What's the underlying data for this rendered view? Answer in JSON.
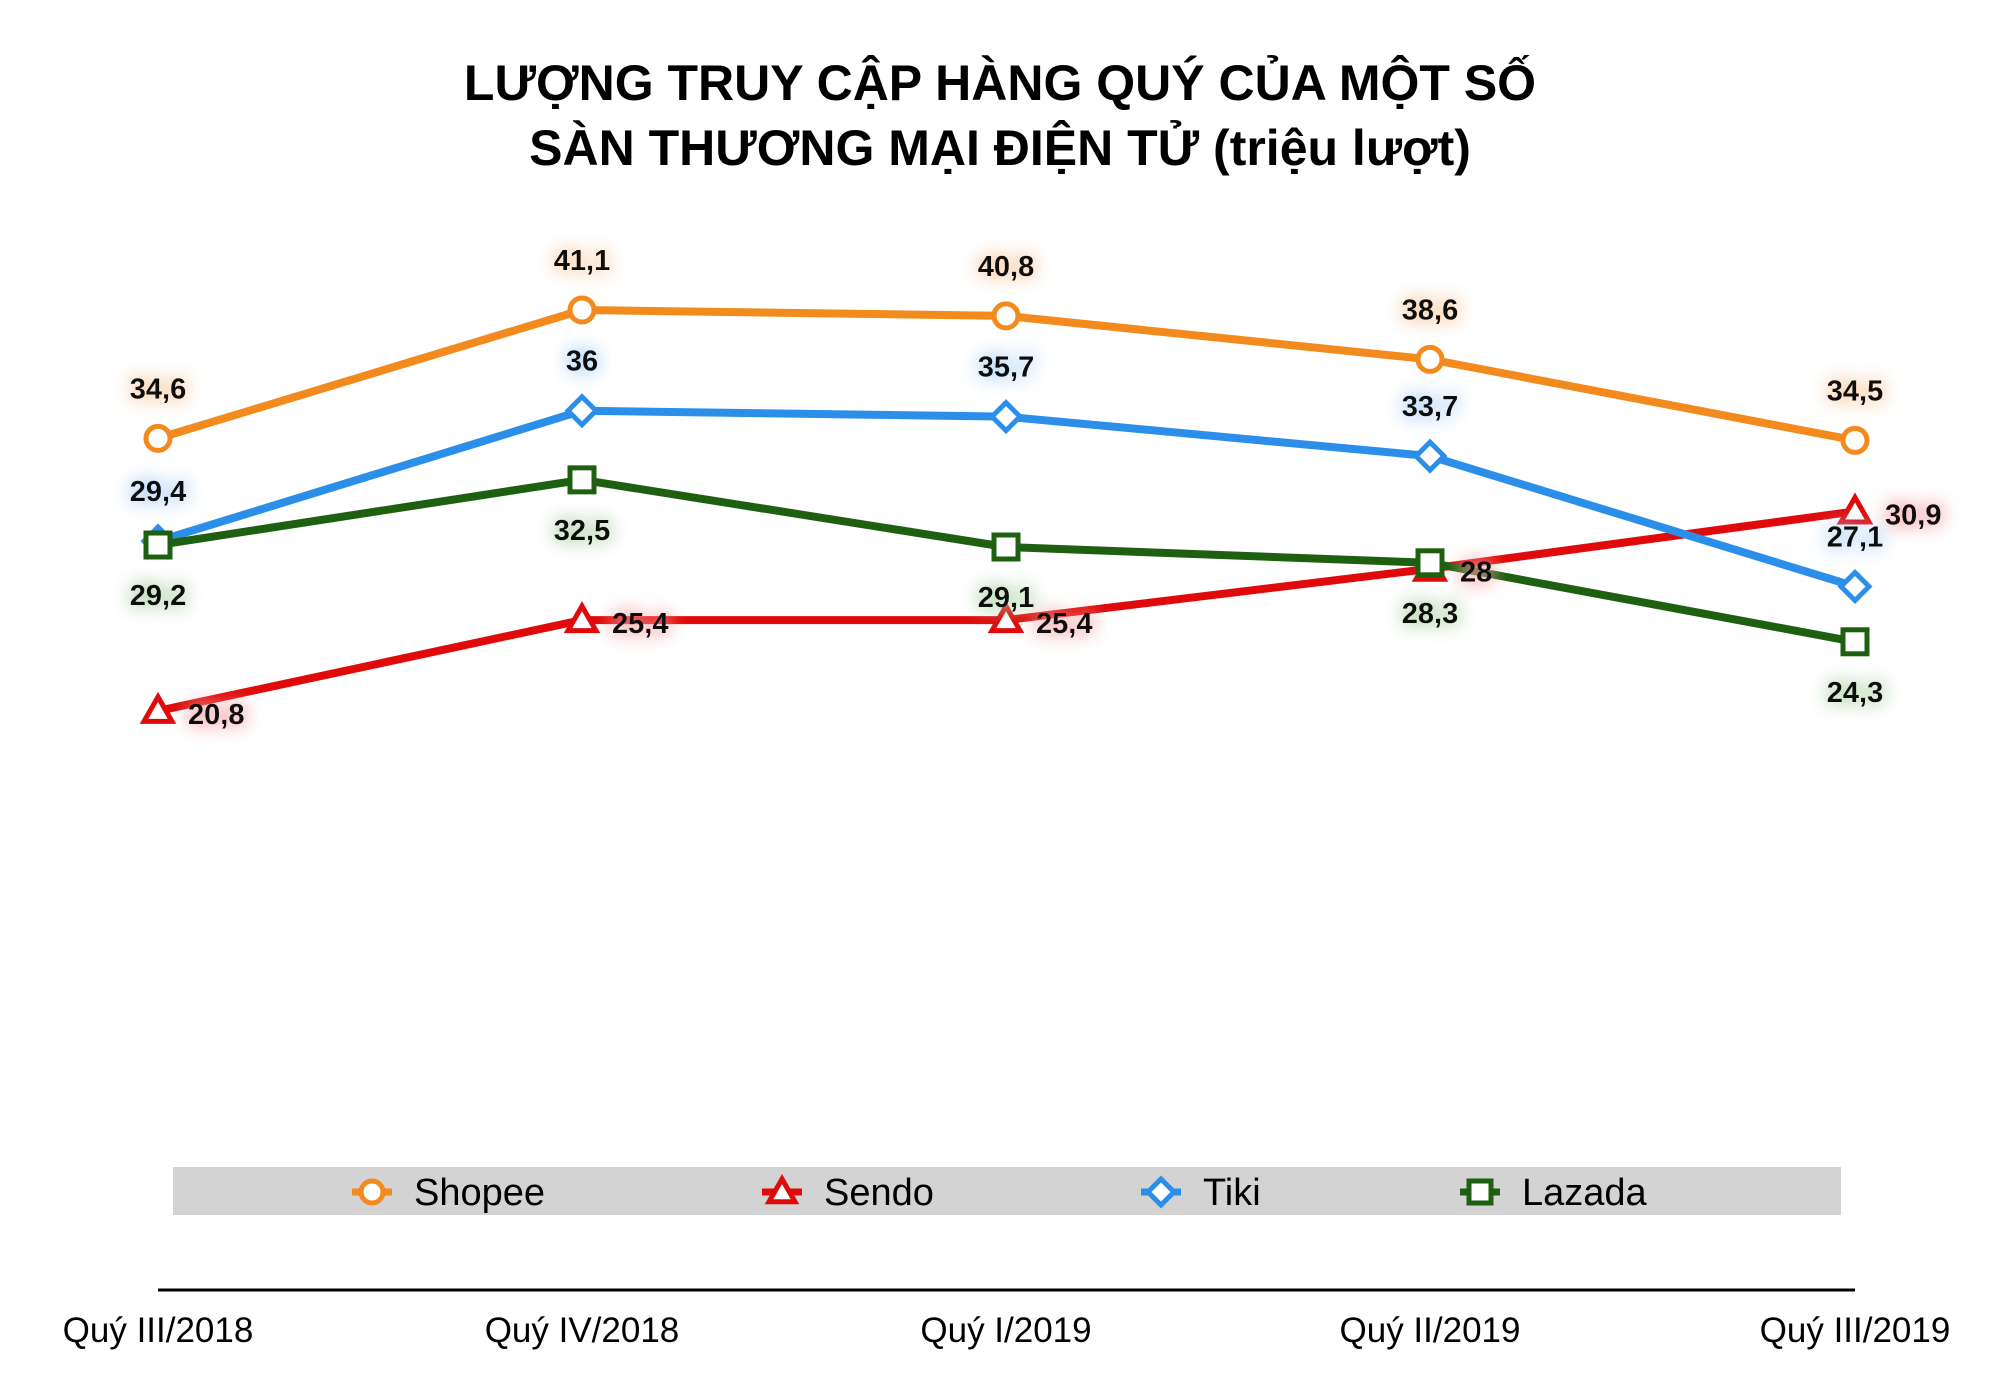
{
  "chart_data": {
    "type": "line",
    "title_lines": [
      "LƯỢNG TRUY CẬP HÀNG QUÝ CỦA MỘT SỐ",
      "SÀN THƯƠNG MẠI ĐIỆN TỬ (triệu lượt)"
    ],
    "xlabel": "",
    "ylabel": "",
    "categories": [
      "Quý III/2018",
      "Quý IV/2018",
      "Quý I/2019",
      "Quý II/2019",
      "Quý III/2019"
    ],
    "ylim": [
      0,
      45
    ],
    "grid": false,
    "legend_position": "bottom",
    "series": [
      {
        "name": "Shopee",
        "color": "#F28A1D",
        "marker": "circle",
        "values": [
          34.6,
          41.1,
          40.8,
          38.6,
          34.5
        ],
        "labels": [
          "34,6",
          "41,1",
          "40,8",
          "38,6",
          "34,5"
        ],
        "label_positions": [
          "above",
          "above",
          "above",
          "above",
          "above"
        ],
        "glow": "#F5C79A"
      },
      {
        "name": "Sendo",
        "color": "#E00A0A",
        "marker": "triangle",
        "values": [
          20.8,
          25.4,
          25.4,
          28,
          30.9
        ],
        "labels": [
          "20,8",
          "25,4",
          "25,4",
          "28",
          "30,9"
        ],
        "label_positions": [
          "right",
          "right",
          "right",
          "right",
          "right"
        ],
        "glow": "#F2A0A0"
      },
      {
        "name": "Tiki",
        "color": "#2B8FEA",
        "marker": "diamond",
        "values": [
          29.4,
          36,
          35.7,
          33.7,
          27.1
        ],
        "labels": [
          "29,4",
          "36",
          "35,7",
          "33,7",
          "27,1"
        ],
        "label_positions": [
          "above",
          "above",
          "above",
          "above",
          "above"
        ],
        "glow": "#A9CFF5"
      },
      {
        "name": "Lazada",
        "color": "#1E6010",
        "marker": "square",
        "values": [
          29.2,
          32.5,
          29.1,
          28.3,
          24.3
        ],
        "labels": [
          "29,2",
          "32,5",
          "29,1",
          "28,3",
          "24,3"
        ],
        "label_positions": [
          "below",
          "below",
          "below",
          "below",
          "below"
        ],
        "glow": "#A8CFA0"
      }
    ],
    "legend_background": "#D3D3D3"
  }
}
